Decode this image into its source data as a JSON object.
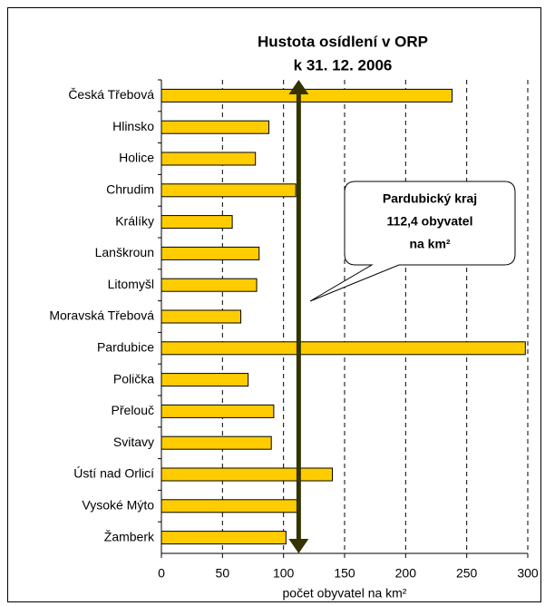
{
  "chart_data": {
    "type": "barh",
    "title": [
      "Hustota osídlení v ORP",
      "k 31. 12. 2006"
    ],
    "categories": [
      "Česká Třebová",
      "Hlinsko",
      "Holice",
      "Chrudim",
      "Králíky",
      "Lanškroun",
      "Litomyšl",
      "Moravská Třebová",
      "Pardubice",
      "Polička",
      "Přelouč",
      "Svitavy",
      "Ústí nad Orlicí",
      "Vysoké Mýto",
      "Žamberk"
    ],
    "values": [
      238,
      88,
      77,
      110,
      58,
      80,
      78,
      65,
      298,
      71,
      92,
      90,
      140,
      113,
      102
    ],
    "color": "#ffcc00",
    "xlim": [
      0,
      300
    ],
    "xticks": [
      0,
      50,
      100,
      150,
      200,
      250,
      300
    ],
    "xlabel": "počet obyvatel na km²",
    "grid": true,
    "reference": {
      "value": 112.4,
      "color": "#333300"
    },
    "annotation": [
      "Pardubický kraj",
      "112,4 obyvatel",
      "na km²"
    ]
  }
}
